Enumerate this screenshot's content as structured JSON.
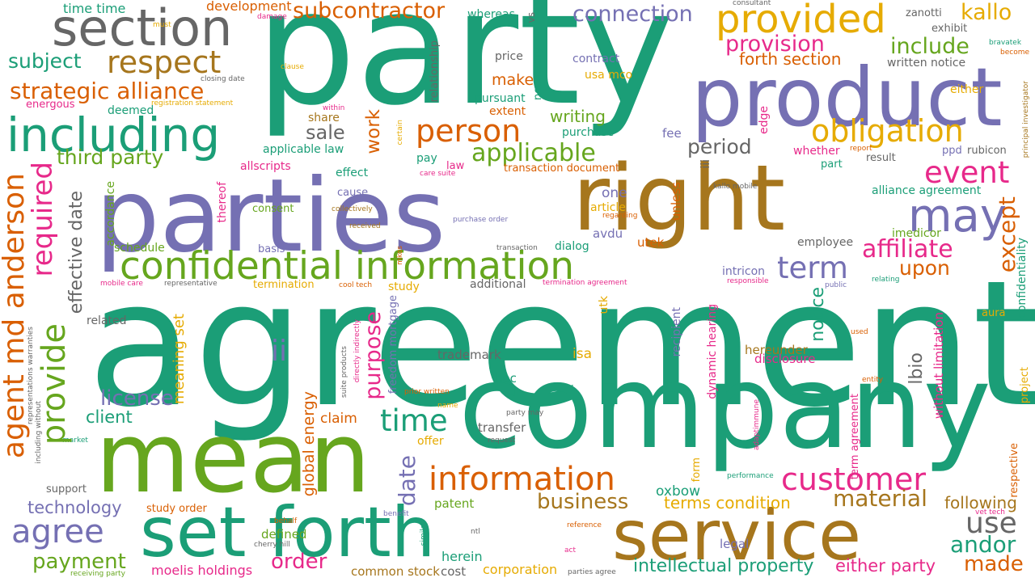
{
  "palette": {
    "teal": "#1b9e77",
    "orange": "#d95f02",
    "purple": "#7570b3",
    "pink": "#e7298a",
    "green": "#66a61e",
    "gold": "#e6ab02",
    "brown": "#a6761d",
    "gray": "#666666"
  },
  "words": [
    {
      "text": "agreement",
      "color": "teal"
    },
    {
      "text": "party",
      "color": "teal"
    },
    {
      "text": "parties",
      "color": "purple"
    },
    {
      "text": "company",
      "color": "teal"
    },
    {
      "text": "mean",
      "color": "green"
    },
    {
      "text": "right",
      "color": "brown"
    },
    {
      "text": "product",
      "color": "purple"
    },
    {
      "text": "service",
      "color": "brown"
    },
    {
      "text": "set forth",
      "color": "teal"
    },
    {
      "text": "section",
      "color": "gray"
    },
    {
      "text": "including",
      "color": "teal"
    },
    {
      "text": "confidential information",
      "color": "green"
    },
    {
      "text": "provided",
      "color": "gold"
    },
    {
      "text": "may",
      "color": "purple"
    },
    {
      "text": "information",
      "color": "orange"
    },
    {
      "text": "respect",
      "color": "brown"
    },
    {
      "text": "obligation",
      "color": "gold"
    },
    {
      "text": "customer",
      "color": "pink"
    },
    {
      "text": "person",
      "color": "orange"
    },
    {
      "text": "event",
      "color": "pink"
    },
    {
      "text": "term",
      "color": "purple"
    },
    {
      "text": "time",
      "color": "teal"
    },
    {
      "text": "agree",
      "color": "purple"
    },
    {
      "text": "use",
      "color": "gray"
    },
    {
      "text": "include",
      "color": "green"
    },
    {
      "text": "kallo",
      "color": "gold"
    },
    {
      "text": "strategic alliance",
      "color": "orange"
    },
    {
      "text": "connection",
      "color": "purple"
    },
    {
      "text": "subcontractor",
      "color": "orange"
    },
    {
      "text": "provision",
      "color": "pink"
    },
    {
      "text": "affiliate",
      "color": "pink"
    },
    {
      "text": "applicable",
      "color": "green"
    },
    {
      "text": "material",
      "color": "brown"
    },
    {
      "text": "subject",
      "color": "teal"
    },
    {
      "text": "third party",
      "color": "green"
    },
    {
      "text": "forth section",
      "color": "orange"
    },
    {
      "text": "period",
      "color": "gray"
    },
    {
      "text": "business",
      "color": "brown"
    },
    {
      "text": "upon",
      "color": "orange"
    },
    {
      "text": "andor",
      "color": "teal"
    },
    {
      "text": "ii",
      "color": "purple"
    },
    {
      "text": "license",
      "color": "purple"
    },
    {
      "text": "payment",
      "color": "green"
    },
    {
      "text": "order",
      "color": "pink"
    },
    {
      "text": "made",
      "color": "orange"
    },
    {
      "text": "either party",
      "color": "pink"
    },
    {
      "text": "intellectual property",
      "color": "teal"
    },
    {
      "text": "sale",
      "color": "gray"
    },
    {
      "text": "technology",
      "color": "purple"
    },
    {
      "text": "terms condition",
      "color": "gold"
    },
    {
      "text": "following",
      "color": "brown"
    },
    {
      "text": "client",
      "color": "teal"
    },
    {
      "text": "make",
      "color": "orange"
    },
    {
      "text": "writing",
      "color": "green"
    },
    {
      "text": "time time",
      "color": "teal"
    },
    {
      "text": "development",
      "color": "orange"
    },
    {
      "text": "oxbow",
      "color": "teal"
    },
    {
      "text": "moelis holdings",
      "color": "pink"
    },
    {
      "text": "common stock",
      "color": "brown"
    },
    {
      "text": "cost",
      "color": "gray"
    },
    {
      "text": "corporation",
      "color": "gold"
    },
    {
      "text": "herein",
      "color": "teal"
    },
    {
      "text": "defined",
      "color": "green"
    },
    {
      "text": "legal",
      "color": "purple"
    },
    {
      "text": "patent",
      "color": "green"
    },
    {
      "text": "claim",
      "color": "orange"
    },
    {
      "text": "transfer",
      "color": "gray"
    },
    {
      "text": "offer",
      "color": "gold"
    },
    {
      "text": "isa",
      "color": "gold"
    },
    {
      "text": "hoc",
      "color": "teal"
    },
    {
      "text": "trademark",
      "color": "gray"
    },
    {
      "text": "hereunder",
      "color": "brown"
    },
    {
      "text": "disclosure",
      "color": "pink"
    },
    {
      "text": "additional",
      "color": "gray"
    },
    {
      "text": "study",
      "color": "gold"
    },
    {
      "text": "intricon",
      "color": "purple"
    },
    {
      "text": "utek",
      "color": "orange"
    },
    {
      "text": "avdu",
      "color": "purple"
    },
    {
      "text": "dialog",
      "color": "teal"
    },
    {
      "text": "employee",
      "color": "gray"
    },
    {
      "text": "imedicor",
      "color": "green"
    },
    {
      "text": "alliance agreement",
      "color": "teal"
    },
    {
      "text": "one",
      "color": "purple"
    },
    {
      "text": "article",
      "color": "gold"
    },
    {
      "text": "consent",
      "color": "green"
    },
    {
      "text": "schedule",
      "color": "green"
    },
    {
      "text": "basis",
      "color": "purple"
    },
    {
      "text": "cause",
      "color": "purple"
    },
    {
      "text": "effect",
      "color": "teal"
    },
    {
      "text": "allscripts",
      "color": "pink"
    },
    {
      "text": "applicable law",
      "color": "teal"
    },
    {
      "text": "law",
      "color": "pink"
    },
    {
      "text": "pay",
      "color": "teal"
    },
    {
      "text": "transaction document",
      "color": "orange"
    },
    {
      "text": "part",
      "color": "teal"
    },
    {
      "text": "result",
      "color": "gray"
    },
    {
      "text": "whether",
      "color": "pink"
    },
    {
      "text": "fee",
      "color": "purple"
    },
    {
      "text": "purchase",
      "color": "teal"
    },
    {
      "text": "extent",
      "color": "orange"
    },
    {
      "text": "share",
      "color": "brown"
    },
    {
      "text": "usa mco",
      "color": "gold"
    },
    {
      "text": "pursuant",
      "color": "teal"
    },
    {
      "text": "contract",
      "color": "purple"
    },
    {
      "text": "price",
      "color": "gray"
    },
    {
      "text": "whereas",
      "color": "teal"
    },
    {
      "text": "deemed",
      "color": "teal"
    },
    {
      "text": "energous",
      "color": "pink"
    },
    {
      "text": "either",
      "color": "gold"
    },
    {
      "text": "written notice",
      "color": "gray"
    },
    {
      "text": "exhibit",
      "color": "gray"
    },
    {
      "text": "zanotti",
      "color": "gray"
    },
    {
      "text": "ppd",
      "color": "purple"
    },
    {
      "text": "rubicon",
      "color": "gray"
    },
    {
      "text": "related",
      "color": "gray"
    },
    {
      "text": "support",
      "color": "gray"
    },
    {
      "text": "study order",
      "color": "orange"
    },
    {
      "text": "aura",
      "color": "gold"
    },
    {
      "text": "termination",
      "color": "gold"
    },
    {
      "text": "bravatek",
      "color": "teal"
    },
    {
      "text": "consultant",
      "color": "gray"
    },
    {
      "text": "become",
      "color": "orange"
    },
    {
      "text": "registration statement",
      "color": "gold"
    },
    {
      "text": "closing date",
      "color": "gray"
    },
    {
      "text": "must",
      "color": "gold"
    },
    {
      "text": "damage",
      "color": "pink"
    },
    {
      "text": "clause",
      "color": "gold"
    },
    {
      "text": "within",
      "color": "pink"
    },
    {
      "text": "collectively",
      "color": "brown"
    },
    {
      "text": "received",
      "color": "brown"
    },
    {
      "text": "care suite",
      "color": "pink"
    },
    {
      "text": "purchase order",
      "color": "purple"
    },
    {
      "text": "kallo mobile",
      "color": "gray"
    },
    {
      "text": "regarding",
      "color": "orange"
    },
    {
      "text": "transaction",
      "color": "gray"
    },
    {
      "text": "report",
      "color": "orange"
    },
    {
      "text": "mobile care",
      "color": "pink"
    },
    {
      "text": "representative",
      "color": "gray"
    },
    {
      "text": "cool tech",
      "color": "orange"
    },
    {
      "text": "termination agreement",
      "color": "pink"
    },
    {
      "text": "responsible",
      "color": "pink"
    },
    {
      "text": "public",
      "color": "purple"
    },
    {
      "text": "relating",
      "color": "teal"
    },
    {
      "text": "used",
      "color": "orange"
    },
    {
      "text": "entity",
      "color": "orange"
    },
    {
      "text": "prior written",
      "color": "orange"
    },
    {
      "text": "name",
      "color": "gold"
    },
    {
      "text": "party may",
      "color": "gray"
    },
    {
      "text": "request",
      "color": "gray"
    },
    {
      "text": "market",
      "color": "teal"
    },
    {
      "text": "benefit",
      "color": "purple"
    },
    {
      "text": "behalf",
      "color": "orange"
    },
    {
      "text": "cherry hill",
      "color": "gray"
    },
    {
      "text": "reference",
      "color": "orange"
    },
    {
      "text": "act",
      "color": "pink"
    },
    {
      "text": "parties agree",
      "color": "gray"
    },
    {
      "text": "receiving party",
      "color": "green"
    },
    {
      "text": "performance",
      "color": "teal"
    },
    {
      "text": "vet tech",
      "color": "pink"
    },
    {
      "text": "ntl",
      "color": "gray"
    },
    {
      "text": "dynamic hearing",
      "color": "pink"
    },
    {
      "text": "edge",
      "color": "pink"
    },
    {
      "text": "provide",
      "color": "green"
    },
    {
      "text": "required",
      "color": "pink"
    },
    {
      "text": "agent md anderson",
      "color": "orange"
    },
    {
      "text": "effective date",
      "color": "gray"
    },
    {
      "text": "work",
      "color": "orange"
    },
    {
      "text": "purpose",
      "color": "pink"
    },
    {
      "text": "date",
      "color": "purple"
    },
    {
      "text": "except",
      "color": "orange"
    },
    {
      "text": "notice",
      "color": "teal"
    },
    {
      "text": "lbio",
      "color": "gray"
    },
    {
      "text": "meaning set",
      "color": "gold"
    },
    {
      "text": "global energy",
      "color": "orange"
    },
    {
      "text": "freedom mortgage",
      "color": "purple"
    },
    {
      "text": "relationship",
      "color": "gray"
    },
    {
      "text": "necessary",
      "color": "teal"
    },
    {
      "text": "vs",
      "color": "gray"
    },
    {
      "text": "accordance",
      "color": "green"
    },
    {
      "text": "thereof",
      "color": "pink"
    },
    {
      "text": "unless",
      "color": "orange"
    },
    {
      "text": "iii",
      "color": "gray"
    },
    {
      "text": "utk",
      "color": "gold"
    },
    {
      "text": "recipient",
      "color": "purple"
    },
    {
      "text": "form",
      "color": "gold"
    },
    {
      "text": "term agreement",
      "color": "pink"
    },
    {
      "text": "without limitation",
      "color": "pink"
    },
    {
      "text": "confidentiality",
      "color": "teal"
    },
    {
      "text": "respective",
      "color": "orange"
    },
    {
      "text": "project",
      "color": "gold"
    },
    {
      "text": "principal investigator",
      "color": "brown"
    },
    {
      "text": "directly indirectly",
      "color": "pink"
    },
    {
      "text": "suite products",
      "color": "gray"
    },
    {
      "text": "adaptimmune",
      "color": "pink"
    },
    {
      "text": "certain",
      "color": "gold"
    },
    {
      "text": "mkos",
      "color": "orange"
    },
    {
      "text": "similar",
      "color": "teal"
    },
    {
      "text": "representations warranties",
      "color": "gray"
    },
    {
      "text": "including without",
      "color": "gray"
    }
  ]
}
